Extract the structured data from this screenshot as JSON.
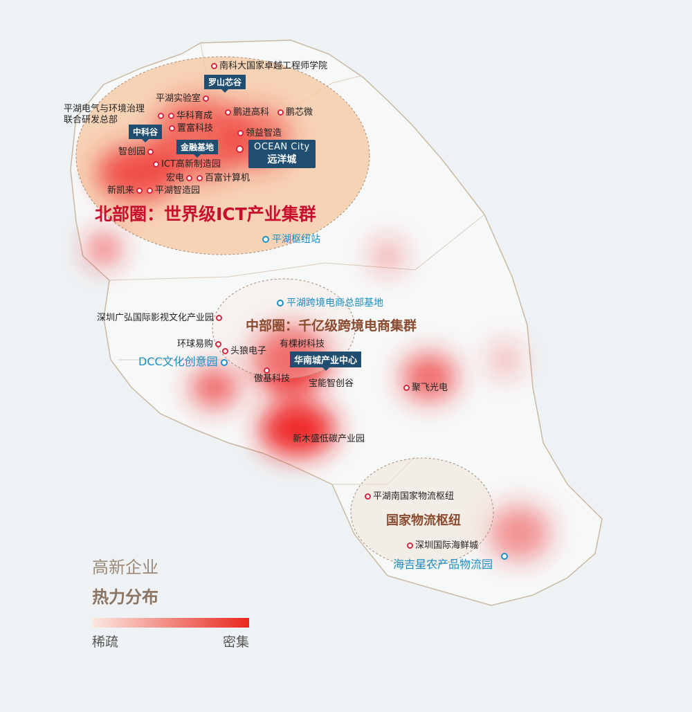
{
  "north": {
    "title": "北部圈：世界级ICT产业集群",
    "tags": [
      "罗山芯谷",
      "中科谷",
      "金融基地"
    ],
    "ocean_en": "OCEAN City",
    "ocean_cn": "远洋城",
    "points": [
      "南科大国家卓越工程师学院",
      "平湖实验室",
      "平湖电气与环境治理",
      "联合研发总部",
      "华科育成",
      "置富科技",
      "鹏进高科",
      "鹏芯微",
      "领益智造",
      "智创园",
      "ICT高新制造园",
      "宏电",
      "百富计算机",
      "新凯来",
      "平湖智造园"
    ],
    "hub": "平湖枢纽站"
  },
  "middle": {
    "title": "中部圈：千亿级跨境电商集群",
    "hub": "平湖跨境电商总部基地",
    "tag": "华南城产业中心",
    "points": [
      "深圳广弘国际影视文化产业园",
      "环球易购",
      "头狼电子",
      "有棵树科技",
      "傲基科技",
      "宝能智创谷",
      "聚飞光电",
      "新木盛低碳产业园"
    ],
    "dcc": "DCC文化创意园"
  },
  "south": {
    "title": "国家物流枢纽",
    "points": [
      "平湖南国家物流枢纽",
      "深圳国际海鲜城"
    ],
    "hub": "海吉星农产品物流园"
  },
  "legend": {
    "line1": "高新企业",
    "line2": "热力分布",
    "low": "稀疏",
    "high": "密集",
    "low_color": "#fbe9e2",
    "high_color": "#e8281e"
  },
  "colors": {
    "north_fill": "#f7c7a0",
    "zone_red": "#c8102e",
    "zone_brown": "#8a4a2e",
    "tag": "#1f4e70",
    "hub_blue": "#1a8fc4"
  }
}
